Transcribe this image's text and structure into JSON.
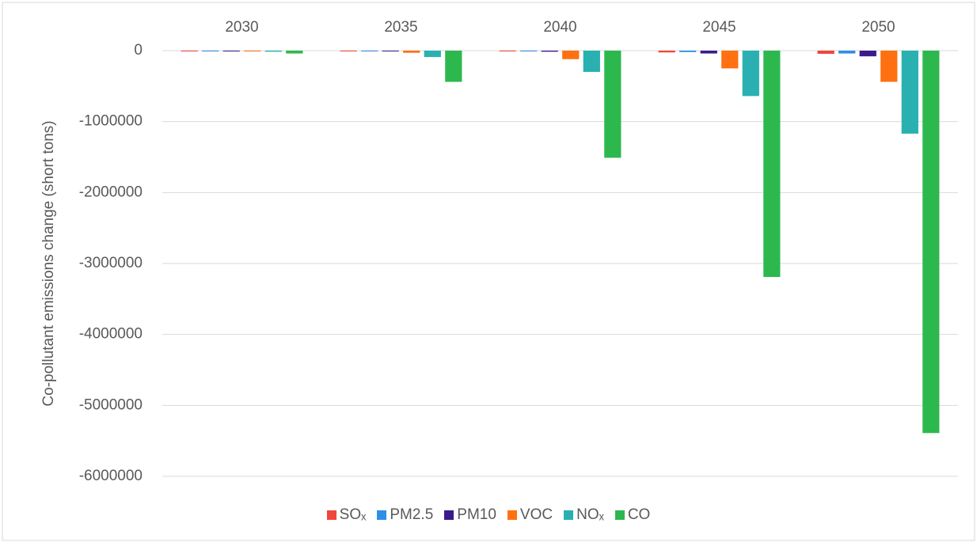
{
  "chart_data": {
    "type": "bar",
    "y_label": "Co-pollutant emissions change (short tons)",
    "categories": [
      "2030",
      "2035",
      "2040",
      "2045",
      "2050"
    ],
    "series": [
      {
        "name": "SOₓ",
        "color": "#f0463c",
        "values": [
          -1000,
          -5000,
          -10000,
          -25000,
          -45000
        ]
      },
      {
        "name": "PM2.5",
        "color": "#2e8ee6",
        "values": [
          -1000,
          -2000,
          -5000,
          -20000,
          -40000
        ]
      },
      {
        "name": "PM10",
        "color": "#3b1a8c",
        "values": [
          -1000,
          -3000,
          -15000,
          -40000,
          -80000
        ]
      },
      {
        "name": "VOC",
        "color": "#ff7010",
        "values": [
          -3000,
          -30000,
          -120000,
          -250000,
          -440000
        ]
      },
      {
        "name": "NOₓ",
        "color": "#2ab0b0",
        "values": [
          -15000,
          -90000,
          -300000,
          -640000,
          -1170000
        ]
      },
      {
        "name": "CO",
        "color": "#2db84e",
        "values": [
          -40000,
          -440000,
          -1510000,
          -3190000,
          -5390000
        ]
      }
    ],
    "ylim": [
      -6000000,
      0
    ],
    "yticks": [
      0,
      -1000000,
      -2000000,
      -3000000,
      -4000000,
      -5000000,
      -6000000
    ],
    "grid": true,
    "legend": "bottom"
  }
}
